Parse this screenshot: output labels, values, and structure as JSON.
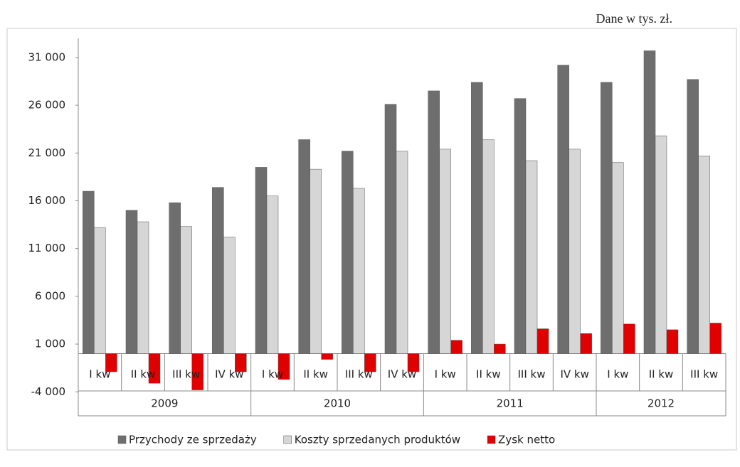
{
  "chart_data": {
    "type": "bar",
    "subtitle": "Dane w tys. zł.",
    "groups": [
      {
        "label": "2009",
        "categories": [
          "I kw",
          "II kw",
          "III kw",
          "IV kw"
        ]
      },
      {
        "label": "2010",
        "categories": [
          "I kw",
          "II kw",
          "III kw",
          "IV kw"
        ]
      },
      {
        "label": "2011",
        "categories": [
          "I kw",
          "II kw",
          "III kw",
          "IV kw"
        ]
      },
      {
        "label": "2012",
        "categories": [
          "I kw",
          "II kw",
          "III kw"
        ]
      }
    ],
    "series": [
      {
        "name": "Przychody ze sprzedaży",
        "color": "#6e6e6e",
        "values": [
          17000,
          15000,
          15800,
          17400,
          19500,
          22400,
          21200,
          26100,
          27500,
          28400,
          26700,
          30200,
          28400,
          31700,
          28700
        ]
      },
      {
        "name": "Koszty sprzedanych produktów",
        "color": "#d6d6d6",
        "values": [
          13200,
          13800,
          13300,
          12200,
          16500,
          19300,
          17300,
          21200,
          21400,
          22400,
          20200,
          21400,
          20000,
          22800,
          20700
        ]
      },
      {
        "name": "Zysk netto",
        "color": "#e00000",
        "values": [
          -1900,
          -3100,
          -3800,
          -1900,
          -2700,
          -600,
          -1900,
          -1900,
          1400,
          1000,
          2600,
          2100,
          3100,
          2500,
          3200
        ]
      }
    ],
    "ylim": [
      -4000,
      33000
    ],
    "yticks": [
      {
        "value": -4000,
        "label": "-4 000"
      },
      {
        "value": 1000,
        "label": "1 000"
      },
      {
        "value": 6000,
        "label": "6 000"
      },
      {
        "value": 11000,
        "label": "11 000"
      },
      {
        "value": 16000,
        "label": "16 000"
      },
      {
        "value": 21000,
        "label": "21 000"
      },
      {
        "value": 26000,
        "label": "26 000"
      },
      {
        "value": 31000,
        "label": "31 000"
      }
    ]
  }
}
